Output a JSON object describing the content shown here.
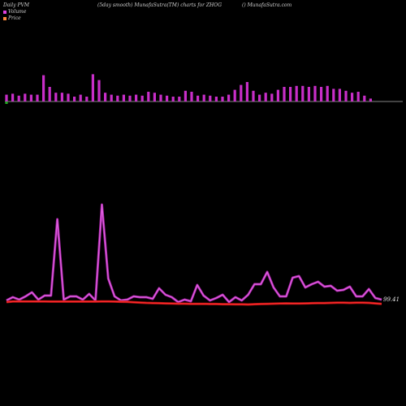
{
  "header": {
    "left": "Daily PVM",
    "center": "(5day smooth) MunafaSutra(TM) charts for ZHOG",
    "right": "() MunafaSutra.com"
  },
  "legend": [
    {
      "label": "Volume",
      "color": "#e040e0"
    },
    {
      "label": "Price",
      "color": "#ff8a3c"
    }
  ],
  "colors": {
    "background": "#000000",
    "volume_bar": "#c82ec8",
    "volume_bar_negative": "#22aa22",
    "pvm_line": "#e060e0",
    "price_line": "#ff2a2a",
    "baseline": "#b0b0b0"
  },
  "price_end_label": "99.41",
  "chart_data": [
    {
      "type": "bar",
      "title": "Volume",
      "categories": [
        "1",
        "2",
        "3",
        "4",
        "5",
        "6",
        "7",
        "8",
        "9",
        "10",
        "11",
        "12",
        "13",
        "14",
        "15",
        "16",
        "17",
        "18",
        "19",
        "20",
        "21",
        "22",
        "23",
        "24",
        "25",
        "26",
        "27",
        "28",
        "29",
        "30",
        "31",
        "32",
        "33",
        "34",
        "35",
        "36",
        "37",
        "38",
        "39",
        "40",
        "41",
        "42",
        "43",
        "44",
        "45",
        "46",
        "47",
        "48",
        "49",
        "50",
        "51",
        "52",
        "53",
        "54",
        "55",
        "56",
        "57",
        "58",
        "59",
        "60"
      ],
      "series": [
        {
          "values": [
            7,
            8,
            6,
            8,
            7,
            7,
            27,
            15,
            9,
            9,
            8,
            5,
            7,
            5,
            28,
            22,
            9,
            7,
            6,
            7,
            6,
            7,
            6,
            10,
            9,
            7,
            6,
            5,
            5,
            11,
            10,
            6,
            7,
            6,
            5,
            5,
            7,
            12,
            17,
            20,
            11,
            7,
            9,
            8,
            12,
            15,
            15,
            16,
            16,
            15,
            16,
            15,
            16,
            13,
            13,
            11,
            9,
            10,
            6,
            3
          ]
        }
      ],
      "negative_bar_index": 0
    },
    {
      "type": "line",
      "x": [
        1,
        2,
        3,
        4,
        5,
        6,
        7,
        8,
        9,
        10,
        11,
        12,
        13,
        14,
        15,
        16,
        17,
        18,
        19,
        20,
        21,
        22,
        23,
        24,
        25,
        26,
        27,
        28,
        29,
        30,
        31,
        32,
        33,
        34,
        35,
        36,
        37,
        38,
        39,
        40,
        41,
        42,
        43,
        44,
        45,
        46,
        47,
        48,
        49,
        50,
        51,
        52,
        53,
        54,
        55,
        56,
        57,
        58,
        59,
        60
      ],
      "series": [
        {
          "name": "Volume",
          "values": [
            5,
            9,
            6,
            10,
            15,
            6,
            11,
            11,
            105,
            6,
            10,
            10,
            6,
            13,
            5,
            123,
            32,
            10,
            5,
            6,
            10,
            9,
            9,
            7,
            20,
            12,
            9,
            3,
            6,
            4,
            24,
            11,
            5,
            8,
            12,
            3,
            9,
            5,
            12,
            25,
            25,
            40,
            21,
            10,
            10,
            33,
            35,
            21,
            25,
            28,
            22,
            23,
            17,
            18,
            22,
            10,
            10,
            19,
            8,
            6
          ]
        },
        {
          "name": "Price",
          "values": [
            2.0,
            2.4,
            2.4,
            2.4,
            2.4,
            2.4,
            2.4,
            2.3,
            2.3,
            2.3,
            2.3,
            2.3,
            2.3,
            2.3,
            2.3,
            2.4,
            2.4,
            2.3,
            2.2,
            2.1,
            1.9,
            1.7,
            1.5,
            1.4,
            1.3,
            1.2,
            1.1,
            1.0,
            1.0,
            0.9,
            0.9,
            0.9,
            0.8,
            0.8,
            0.7,
            0.7,
            0.6,
            0.6,
            0.5,
            0.7,
            0.8,
            0.9,
            1.0,
            1.1,
            1.2,
            1.1,
            1.1,
            1.2,
            1.3,
            1.4,
            1.4,
            1.5,
            1.6,
            1.6,
            1.5,
            1.6,
            1.6,
            1.5,
            1.2,
            0.9
          ]
        }
      ]
    }
  ]
}
